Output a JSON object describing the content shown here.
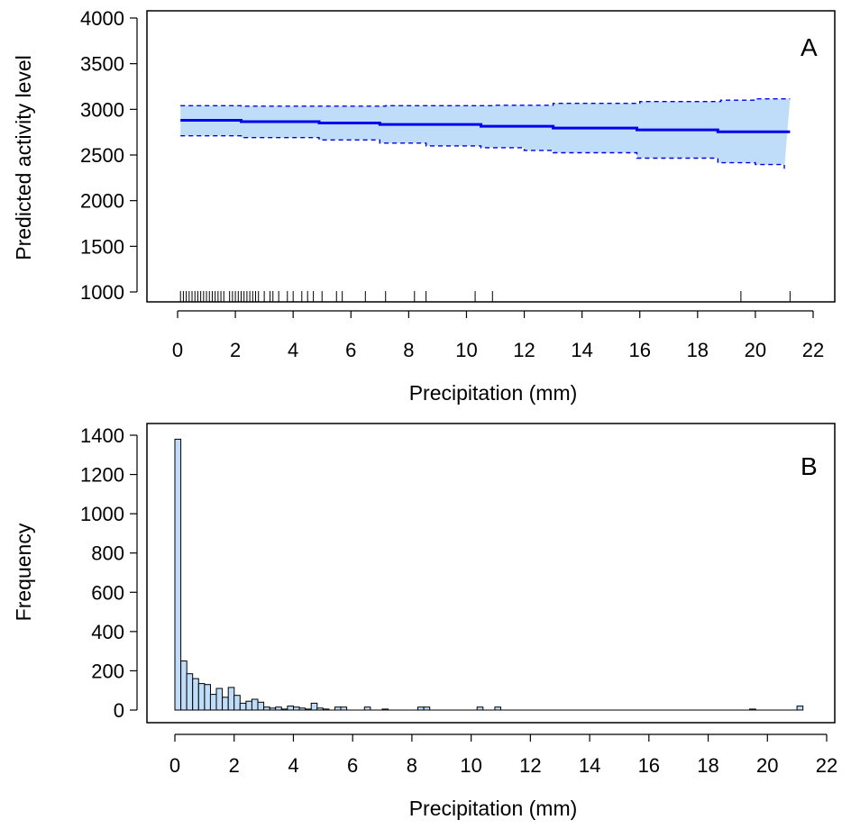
{
  "chart_data": [
    {
      "type": "line",
      "panel_label": "A",
      "xlabel": "Precipitation (mm)",
      "ylabel": "Predicted activity level",
      "xlim": [
        0,
        22
      ],
      "ylim": [
        1000,
        4000
      ],
      "xticks": [
        0,
        2,
        4,
        6,
        8,
        10,
        12,
        14,
        16,
        18,
        20,
        22
      ],
      "yticks": [
        1000,
        1500,
        2000,
        2500,
        3000,
        3500,
        4000
      ],
      "colors": {
        "line": "#0000ee",
        "band": "#bfdcf8",
        "band_edge": "#0000ee",
        "rug": "#000000"
      },
      "series": [
        {
          "x": [
            0.1,
            2.2,
            2.2,
            4.9,
            4.9,
            7.0,
            7.0,
            10.5,
            10.5,
            13.0,
            13.0,
            15.9,
            15.9,
            18.7,
            18.7,
            21.2
          ],
          "y": [
            2880,
            2880,
            2865,
            2865,
            2850,
            2850,
            2835,
            2835,
            2815,
            2815,
            2795,
            2795,
            2775,
            2775,
            2755,
            2755
          ]
        }
      ],
      "band_upper": {
        "x": [
          0.1,
          2.2,
          2.2,
          7.2,
          7.2,
          11.0,
          11.0,
          13.0,
          13.0,
          16.0,
          16.0,
          18.8,
          18.8,
          20.0,
          20.0,
          21.2
        ],
        "y": [
          3040,
          3040,
          3035,
          3035,
          3040,
          3040,
          3045,
          3045,
          3065,
          3065,
          3085,
          3085,
          3100,
          3100,
          3115,
          3115
        ]
      },
      "band_lower": {
        "x": [
          0.1,
          2.2,
          2.2,
          4.9,
          4.9,
          7.0,
          7.0,
          8.6,
          8.6,
          10.5,
          10.5,
          12.0,
          12.0,
          13.0,
          13.0,
          15.9,
          15.9,
          18.7,
          18.7,
          20.0,
          20.0,
          21.0,
          21.0
        ],
        "y": [
          2710,
          2710,
          2690,
          2690,
          2665,
          2665,
          2630,
          2630,
          2600,
          2600,
          2580,
          2580,
          2550,
          2550,
          2525,
          2525,
          2465,
          2465,
          2415,
          2415,
          2395,
          2395,
          2350
        ]
      },
      "rug": [
        0.1,
        0.2,
        0.3,
        0.4,
        0.5,
        0.6,
        0.7,
        0.8,
        0.9,
        1.0,
        1.1,
        1.2,
        1.3,
        1.4,
        1.5,
        1.6,
        1.8,
        1.9,
        2.0,
        2.1,
        2.2,
        2.3,
        2.4,
        2.5,
        2.6,
        2.7,
        2.8,
        3.0,
        3.2,
        3.3,
        3.5,
        3.8,
        4.0,
        4.3,
        4.5,
        4.7,
        5.0,
        5.5,
        5.7,
        6.5,
        7.2,
        8.2,
        8.6,
        10.3,
        10.9,
        19.5,
        21.2
      ]
    },
    {
      "type": "bar",
      "panel_label": "B",
      "xlabel": "Precipitation (mm)",
      "ylabel": "Frequency",
      "xlim": [
        0,
        22
      ],
      "ylim": [
        0,
        1400
      ],
      "xticks": [
        0,
        2,
        4,
        6,
        8,
        10,
        12,
        14,
        16,
        18,
        20,
        22
      ],
      "yticks": [
        0,
        200,
        400,
        600,
        800,
        1000,
        1200,
        1400
      ],
      "bin_width": 0.2,
      "colors": {
        "bar_fill": "#bfdcf8",
        "bar_edge": "#000000"
      },
      "bin_starts": [
        0.0,
        0.2,
        0.4,
        0.6,
        0.8,
        1.0,
        1.2,
        1.4,
        1.6,
        1.8,
        2.0,
        2.2,
        2.4,
        2.6,
        2.8,
        3.0,
        3.2,
        3.4,
        3.6,
        3.8,
        4.0,
        4.2,
        4.4,
        4.6,
        4.8,
        5.0,
        5.4,
        5.6,
        6.4,
        7.0,
        8.2,
        8.4,
        10.2,
        10.8,
        19.4,
        21.0
      ],
      "values": [
        1380,
        250,
        185,
        160,
        135,
        130,
        80,
        110,
        65,
        115,
        75,
        35,
        45,
        55,
        40,
        15,
        10,
        15,
        5,
        20,
        15,
        10,
        5,
        35,
        10,
        5,
        15,
        15,
        15,
        5,
        15,
        15,
        15,
        15,
        5,
        20
      ]
    }
  ]
}
